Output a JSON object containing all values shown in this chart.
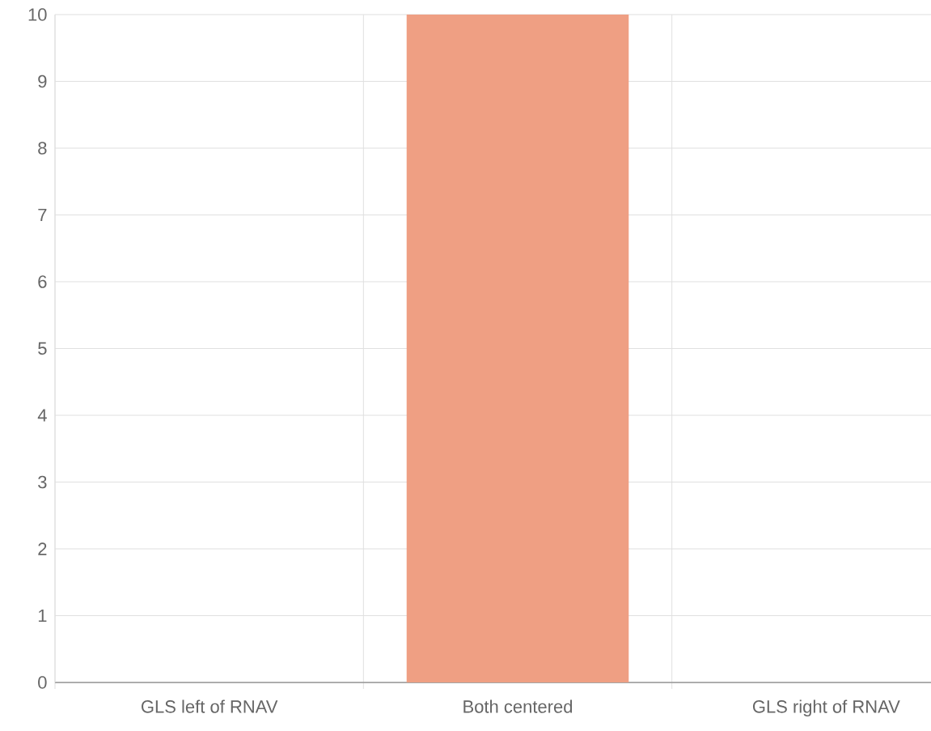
{
  "chart_data": {
    "type": "bar",
    "categories": [
      "GLS left of RNAV",
      "Both centered",
      "GLS right of RNAV"
    ],
    "values": [
      0,
      10,
      0
    ],
    "color": "#ef9f83",
    "ylim": [
      0,
      10
    ],
    "yticks": [
      0,
      1,
      2,
      3,
      4,
      5,
      6,
      7,
      8,
      9,
      10
    ],
    "grid": true
  }
}
